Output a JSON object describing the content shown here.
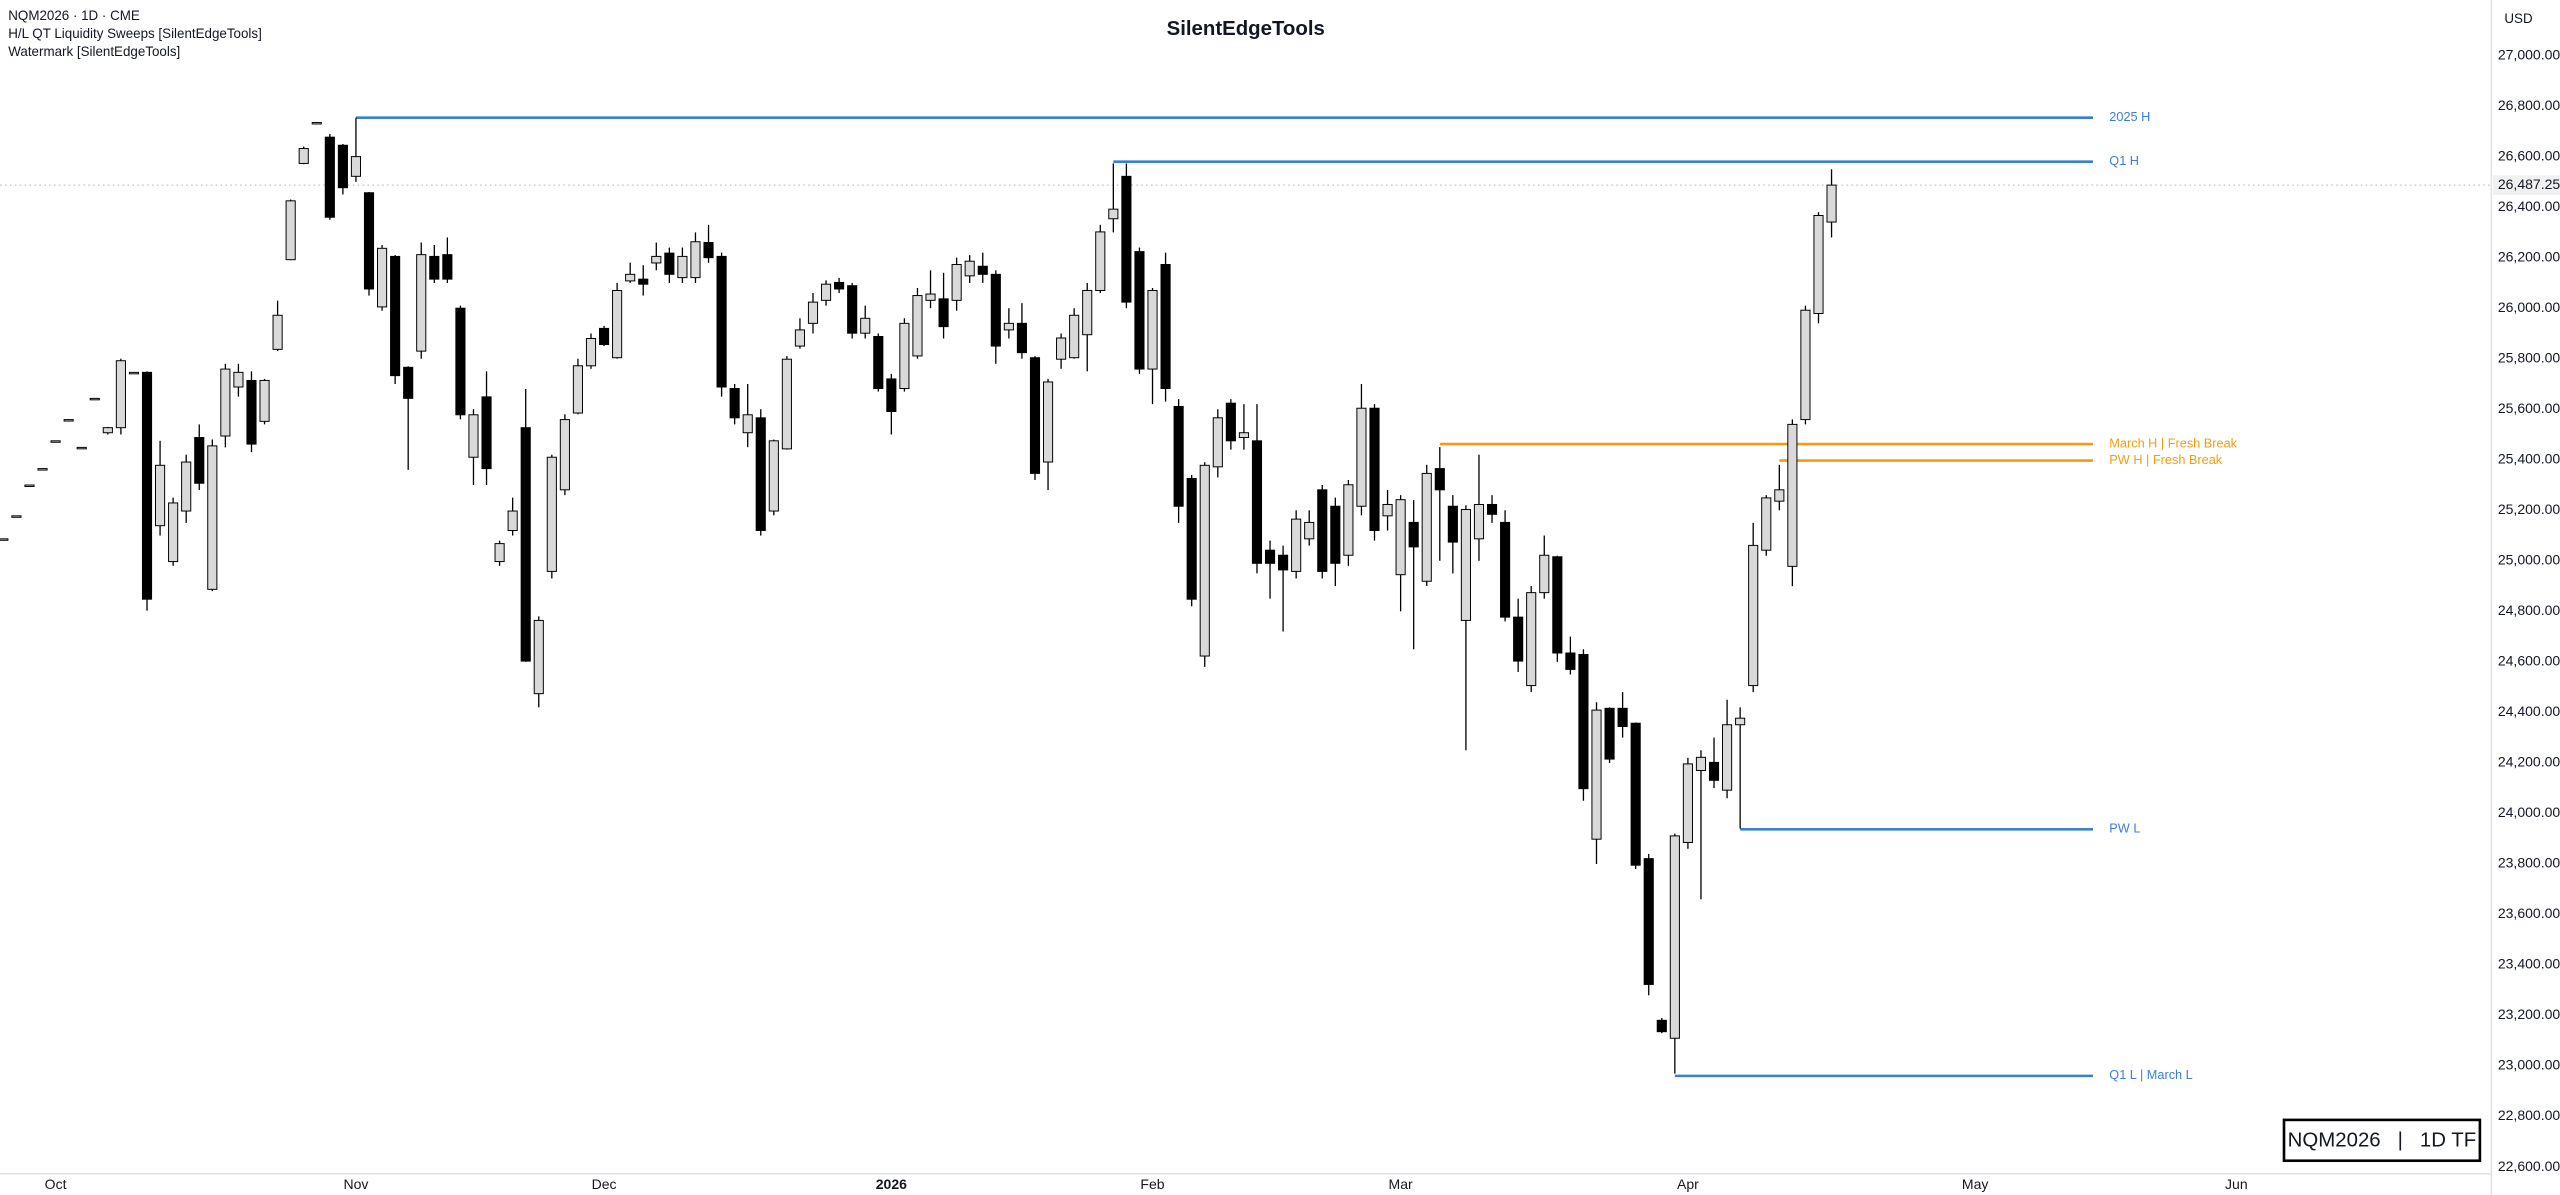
{
  "header": {
    "lines": [
      "NQM2026 · 1D · CME",
      "H/L QT Liquidity Sweeps [SilentEdgeTools]",
      "Watermark [SilentEdgeTools]"
    ],
    "currency": "USD",
    "badge": "NQM2026   |   1D TF"
  },
  "chart_data": {
    "type": "candlestick",
    "title": "SilentEdgeTools",
    "xlim": [
      -0.25,
      190.4
    ],
    "ylim": [
      22567,
      27220
    ],
    "xticks": [
      {
        "value": 4,
        "label": "Oct"
      },
      {
        "value": 27,
        "label": "Nov"
      },
      {
        "value": 46,
        "label": "Dec"
      },
      {
        "value": 68,
        "label": "2026"
      },
      {
        "value": 88,
        "label": "Feb"
      },
      {
        "value": 107,
        "label": "Mar"
      },
      {
        "value": 129,
        "label": "Apr"
      },
      {
        "value": 151,
        "label": "May"
      },
      {
        "value": 171,
        "label": "Jun"
      }
    ],
    "yticks": [
      {
        "value": 22600,
        "label": "22,600.00"
      },
      {
        "value": 22800,
        "label": "22,800.00"
      },
      {
        "value": 23000,
        "label": "23,000.00"
      },
      {
        "value": 23200,
        "label": "23,200.00"
      },
      {
        "value": 23400,
        "label": "23,400.00"
      },
      {
        "value": 23600,
        "label": "23,600.00"
      },
      {
        "value": 23800,
        "label": "23,800.00"
      },
      {
        "value": 24000,
        "label": "24,000.00"
      },
      {
        "value": 24200,
        "label": "24,200.00"
      },
      {
        "value": 24400,
        "label": "24,400.00"
      },
      {
        "value": 24600,
        "label": "24,600.00"
      },
      {
        "value": 24800,
        "label": "24,800.00"
      },
      {
        "value": 25000,
        "label": "25,000.00"
      },
      {
        "value": 25200,
        "label": "25,200.00"
      },
      {
        "value": 25400,
        "label": "25,400.00"
      },
      {
        "value": 25600,
        "label": "25,600.00"
      },
      {
        "value": 25800,
        "label": "25,800.00"
      },
      {
        "value": 26000,
        "label": "26,000.00"
      },
      {
        "value": 26200,
        "label": "26,200.00"
      },
      {
        "value": 26400,
        "label": "26,400.00"
      },
      {
        "value": 26600,
        "label": "26,600.00"
      },
      {
        "value": 26800,
        "label": "26,800.00"
      },
      {
        "value": 27000,
        "label": "27,000.00"
      }
    ],
    "up_color": "#d9d9d9",
    "down_color": "#000000",
    "last_price": {
      "value": 26487.25,
      "label": "26,487.25"
    },
    "levels": [
      {
        "label": "2025 H",
        "value": 26754,
        "from": 27,
        "color": "#3a7fd5"
      },
      {
        "label": "Q1 H",
        "value": 26580,
        "from": 85,
        "color": "#3a7fd5"
      },
      {
        "label": "March H | Fresh Break",
        "value": 25462,
        "from": 110,
        "color": "#f39c12"
      },
      {
        "label": "PW H | Fresh Break",
        "value": 25397,
        "from": 136,
        "color": "#f39c12"
      },
      {
        "label": "PW L",
        "value": 23937,
        "from": 133,
        "color": "#3a7fd5"
      },
      {
        "label": "Q1 L | March L",
        "value": 22961,
        "from": 128,
        "color": "#3a7fd5"
      }
    ],
    "candles": [
      [
        25087,
        25087,
        25087,
        25087
      ],
      [
        25178,
        25178,
        25178,
        25178
      ],
      [
        25300,
        25300,
        25300,
        25300
      ],
      [
        25365,
        25365,
        25365,
        25365
      ],
      [
        25475,
        25475,
        25475,
        25475
      ],
      [
        25559,
        25559,
        25559,
        25559
      ],
      [
        25449,
        25449,
        25449,
        25449
      ],
      [
        25643,
        25643,
        25643,
        25643
      ],
      [
        25507,
        25530,
        25500,
        25527
      ],
      [
        25527,
        25800,
        25500,
        25792
      ],
      [
        25746,
        25746,
        25746,
        25746
      ],
      [
        25746,
        25750,
        24803,
        24848
      ],
      [
        25139,
        25475,
        25100,
        25378
      ],
      [
        24997,
        25250,
        24980,
        25229
      ],
      [
        25197,
        25420,
        25150,
        25391
      ],
      [
        25488,
        25540,
        25280,
        25307
      ],
      [
        24887,
        25480,
        24880,
        25455
      ],
      [
        25494,
        25780,
        25449,
        25759
      ],
      [
        25688,
        25780,
        25650,
        25746
      ],
      [
        25714,
        25750,
        25430,
        25462
      ],
      [
        25552,
        25720,
        25540,
        25714
      ],
      [
        25837,
        26030,
        25830,
        25972
      ],
      [
        26192,
        26430,
        26190,
        26425
      ],
      [
        26573,
        26640,
        26570,
        26632
      ],
      [
        26735,
        26735,
        26735,
        26735
      ],
      [
        26677,
        26690,
        26350,
        26360
      ],
      [
        26645,
        26650,
        26450,
        26477
      ],
      [
        26522,
        26754,
        26500,
        26600
      ],
      [
        26457,
        26460,
        26050,
        26076
      ],
      [
        26005,
        26250,
        25990,
        26237
      ],
      [
        26205,
        26210,
        25700,
        25733
      ],
      [
        25766,
        25770,
        25360,
        25643
      ],
      [
        25830,
        26260,
        25800,
        26212
      ],
      [
        26205,
        26250,
        26100,
        26115
      ],
      [
        26212,
        26280,
        26100,
        26115
      ],
      [
        26000,
        26010,
        25560,
        25578
      ],
      [
        25410,
        25600,
        25300,
        25578
      ],
      [
        25649,
        25750,
        25300,
        25365
      ],
      [
        24997,
        25080,
        24980,
        25068
      ],
      [
        25120,
        25250,
        25100,
        25197
      ],
      [
        25527,
        25680,
        24600,
        24603
      ],
      [
        24474,
        24780,
        24420,
        24764
      ],
      [
        24958,
        25420,
        24930,
        25410
      ],
      [
        25281,
        25580,
        25260,
        25559
      ],
      [
        25585,
        25800,
        25580,
        25772
      ],
      [
        25772,
        25900,
        25760,
        25880
      ],
      [
        25920,
        25930,
        25850,
        25856
      ],
      [
        25804,
        26100,
        25800,
        26070
      ],
      [
        26108,
        26180,
        26100,
        26134
      ],
      [
        26115,
        26170,
        26050,
        26095
      ],
      [
        26179,
        26260,
        26150,
        26205
      ],
      [
        26218,
        26240,
        26100,
        26134
      ],
      [
        26121,
        26240,
        26100,
        26205
      ],
      [
        26121,
        26300,
        26100,
        26263
      ],
      [
        26260,
        26330,
        26180,
        26200
      ],
      [
        26205,
        26220,
        25650,
        25688
      ],
      [
        25682,
        25700,
        25540,
        25566
      ],
      [
        25507,
        25700,
        25450,
        25578
      ],
      [
        25566,
        25600,
        25100,
        25120
      ],
      [
        25197,
        25480,
        25180,
        25475
      ],
      [
        25443,
        25810,
        25440,
        25798
      ],
      [
        25850,
        25960,
        25840,
        25914
      ],
      [
        25940,
        26060,
        25900,
        26024
      ],
      [
        26031,
        26110,
        26010,
        26095
      ],
      [
        26102,
        26120,
        26060,
        26076
      ],
      [
        26089,
        26100,
        25880,
        25901
      ],
      [
        25901,
        26010,
        25880,
        25960
      ],
      [
        25888,
        25900,
        25670,
        25682
      ],
      [
        25720,
        25740,
        25500,
        25591
      ],
      [
        25682,
        25960,
        25670,
        25940
      ],
      [
        25811,
        26080,
        25800,
        26050
      ],
      [
        26031,
        26150,
        26000,
        26056
      ],
      [
        26037,
        26140,
        25880,
        25927
      ],
      [
        26031,
        26200,
        25990,
        26173
      ],
      [
        26128,
        26210,
        26100,
        26186
      ],
      [
        26166,
        26220,
        26100,
        26134
      ],
      [
        26134,
        26150,
        25780,
        25850
      ],
      [
        25914,
        26000,
        25880,
        25940
      ],
      [
        25940,
        26020,
        25800,
        25824
      ],
      [
        25804,
        25810,
        25320,
        25346
      ],
      [
        25391,
        25720,
        25280,
        25708
      ],
      [
        25798,
        25900,
        25760,
        25882
      ],
      [
        25804,
        26000,
        25800,
        25972
      ],
      [
        25895,
        26100,
        25750,
        26070
      ],
      [
        26070,
        26330,
        26060,
        26302
      ],
      [
        26354,
        26573,
        26300,
        26392
      ],
      [
        26522,
        26573,
        26000,
        26024
      ],
      [
        26224,
        26240,
        25740,
        25759
      ],
      [
        25759,
        26080,
        25620,
        26070
      ],
      [
        26173,
        26220,
        25630,
        25682
      ],
      [
        25611,
        25640,
        25150,
        25216
      ],
      [
        25326,
        25340,
        24820,
        24848
      ],
      [
        24623,
        25390,
        24580,
        25378
      ],
      [
        25372,
        25600,
        25330,
        25566
      ],
      [
        25624,
        25640,
        25440,
        25475
      ],
      [
        25488,
        25620,
        25440,
        25507
      ],
      [
        25475,
        25620,
        24950,
        24990
      ],
      [
        25042,
        25080,
        24850,
        24990
      ],
      [
        25022,
        25060,
        24720,
        24964
      ],
      [
        24958,
        25200,
        24930,
        25165
      ],
      [
        25087,
        25200,
        25060,
        25152
      ],
      [
        25281,
        25300,
        24930,
        24958
      ],
      [
        25216,
        25250,
        24900,
        24990
      ],
      [
        25022,
        25320,
        24980,
        25301
      ],
      [
        25216,
        25700,
        25180,
        25604
      ],
      [
        25604,
        25620,
        25080,
        25120
      ],
      [
        25178,
        25280,
        25120,
        25223
      ],
      [
        24945,
        25260,
        24800,
        25242
      ],
      [
        25152,
        25240,
        24650,
        25055
      ],
      [
        24919,
        25380,
        24900,
        25346
      ],
      [
        25365,
        25450,
        25000,
        25281
      ],
      [
        25216,
        25260,
        24950,
        25074
      ],
      [
        24764,
        25220,
        24250,
        25203
      ],
      [
        25087,
        25420,
        25000,
        25223
      ],
      [
        25223,
        25260,
        25150,
        25184
      ],
      [
        25152,
        25200,
        24760,
        24777
      ],
      [
        24777,
        24850,
        24560,
        24603
      ],
      [
        24506,
        24900,
        24480,
        24874
      ],
      [
        24874,
        25100,
        24850,
        25022
      ],
      [
        25016,
        25020,
        24600,
        24635
      ],
      [
        24635,
        24700,
        24550,
        24570
      ],
      [
        24629,
        24650,
        24050,
        24098
      ],
      [
        23898,
        24440,
        23800,
        24409
      ],
      [
        24416,
        24420,
        24200,
        24215
      ],
      [
        24416,
        24480,
        24300,
        24344
      ],
      [
        24357,
        24360,
        23780,
        23795
      ],
      [
        23821,
        23840,
        23280,
        23323
      ],
      [
        23181,
        23190,
        23130,
        23136
      ],
      [
        23110,
        23920,
        22970,
        23911
      ],
      [
        23885,
        24220,
        23860,
        24196
      ],
      [
        24170,
        24250,
        23660,
        24222
      ],
      [
        24202,
        24300,
        24100,
        24131
      ],
      [
        24092,
        24450,
        24060,
        24351
      ],
      [
        24351,
        24420,
        23940,
        24377
      ],
      [
        24506,
        25150,
        24480,
        25061
      ],
      [
        25042,
        25260,
        25020,
        25249
      ],
      [
        25236,
        25380,
        25200,
        25281
      ],
      [
        24978,
        25560,
        24900,
        25540
      ],
      [
        25559,
        26010,
        25540,
        25992
      ],
      [
        25979,
        26380,
        25940,
        26367
      ],
      [
        26341,
        26550,
        26280,
        26487.25
      ]
    ]
  }
}
